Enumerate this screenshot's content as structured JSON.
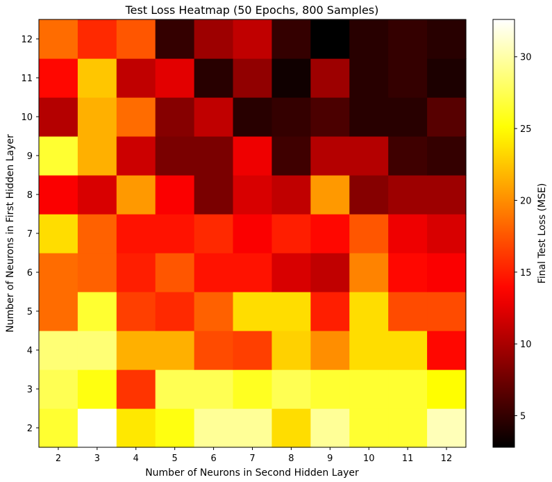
{
  "chart_data": {
    "type": "heatmap",
    "title": "Test Loss Heatmap (50 Epochs, 800 Samples)",
    "xlabel": "Number of Neurons in Second Hidden Layer",
    "ylabel": "Number of Neurons in First Hidden Layer",
    "colorbar_label": "Final Test Loss (MSE)",
    "colormap": "hot",
    "vmin": 2.8,
    "vmax": 32.6,
    "colorbar_ticks": [
      5,
      10,
      15,
      20,
      25,
      30
    ],
    "x": [
      2,
      3,
      4,
      5,
      6,
      7,
      8,
      9,
      10,
      11,
      12
    ],
    "y": [
      2,
      3,
      4,
      5,
      6,
      7,
      8,
      9,
      10,
      11,
      12
    ],
    "values": [
      [
        26.5,
        32.6,
        24.0,
        25.5,
        29.5,
        29.5,
        23.5,
        29.5,
        26.5,
        26.5,
        30.5
      ],
      [
        27.5,
        25.5,
        16.0,
        27.5,
        27.5,
        26.0,
        27.5,
        26.5,
        26.5,
        26.5,
        25.0
      ],
      [
        28.5,
        28.5,
        21.5,
        21.5,
        17.0,
        16.5,
        23.0,
        20.0,
        23.5,
        23.5,
        14.0
      ],
      [
        18.5,
        26.5,
        16.5,
        15.5,
        18.0,
        23.5,
        23.5,
        15.0,
        23.5,
        17.0,
        17.0
      ],
      [
        18.5,
        18.0,
        15.0,
        17.5,
        14.5,
        14.5,
        12.0,
        11.0,
        19.5,
        14.0,
        13.5
      ],
      [
        23.5,
        18.0,
        14.5,
        14.5,
        15.5,
        13.5,
        15.0,
        14.0,
        17.5,
        13.0,
        12.0
      ],
      [
        13.5,
        12.0,
        20.5,
        13.5,
        8.0,
        12.0,
        11.0,
        20.5,
        8.5,
        9.5,
        9.5
      ],
      [
        26.5,
        21.5,
        11.5,
        8.0,
        8.0,
        13.0,
        5.5,
        10.5,
        10.5,
        5.5,
        5.0
      ],
      [
        10.5,
        21.5,
        18.5,
        8.5,
        11.0,
        4.5,
        5.0,
        6.0,
        4.5,
        4.5,
        6.5
      ],
      [
        14.0,
        22.5,
        11.0,
        12.5,
        4.5,
        9.0,
        3.5,
        9.5,
        4.5,
        5.0,
        4.0
      ],
      [
        18.5,
        15.5,
        17.5,
        5.0,
        9.5,
        11.0,
        5.0,
        2.8,
        4.5,
        5.0,
        4.5
      ]
    ]
  }
}
